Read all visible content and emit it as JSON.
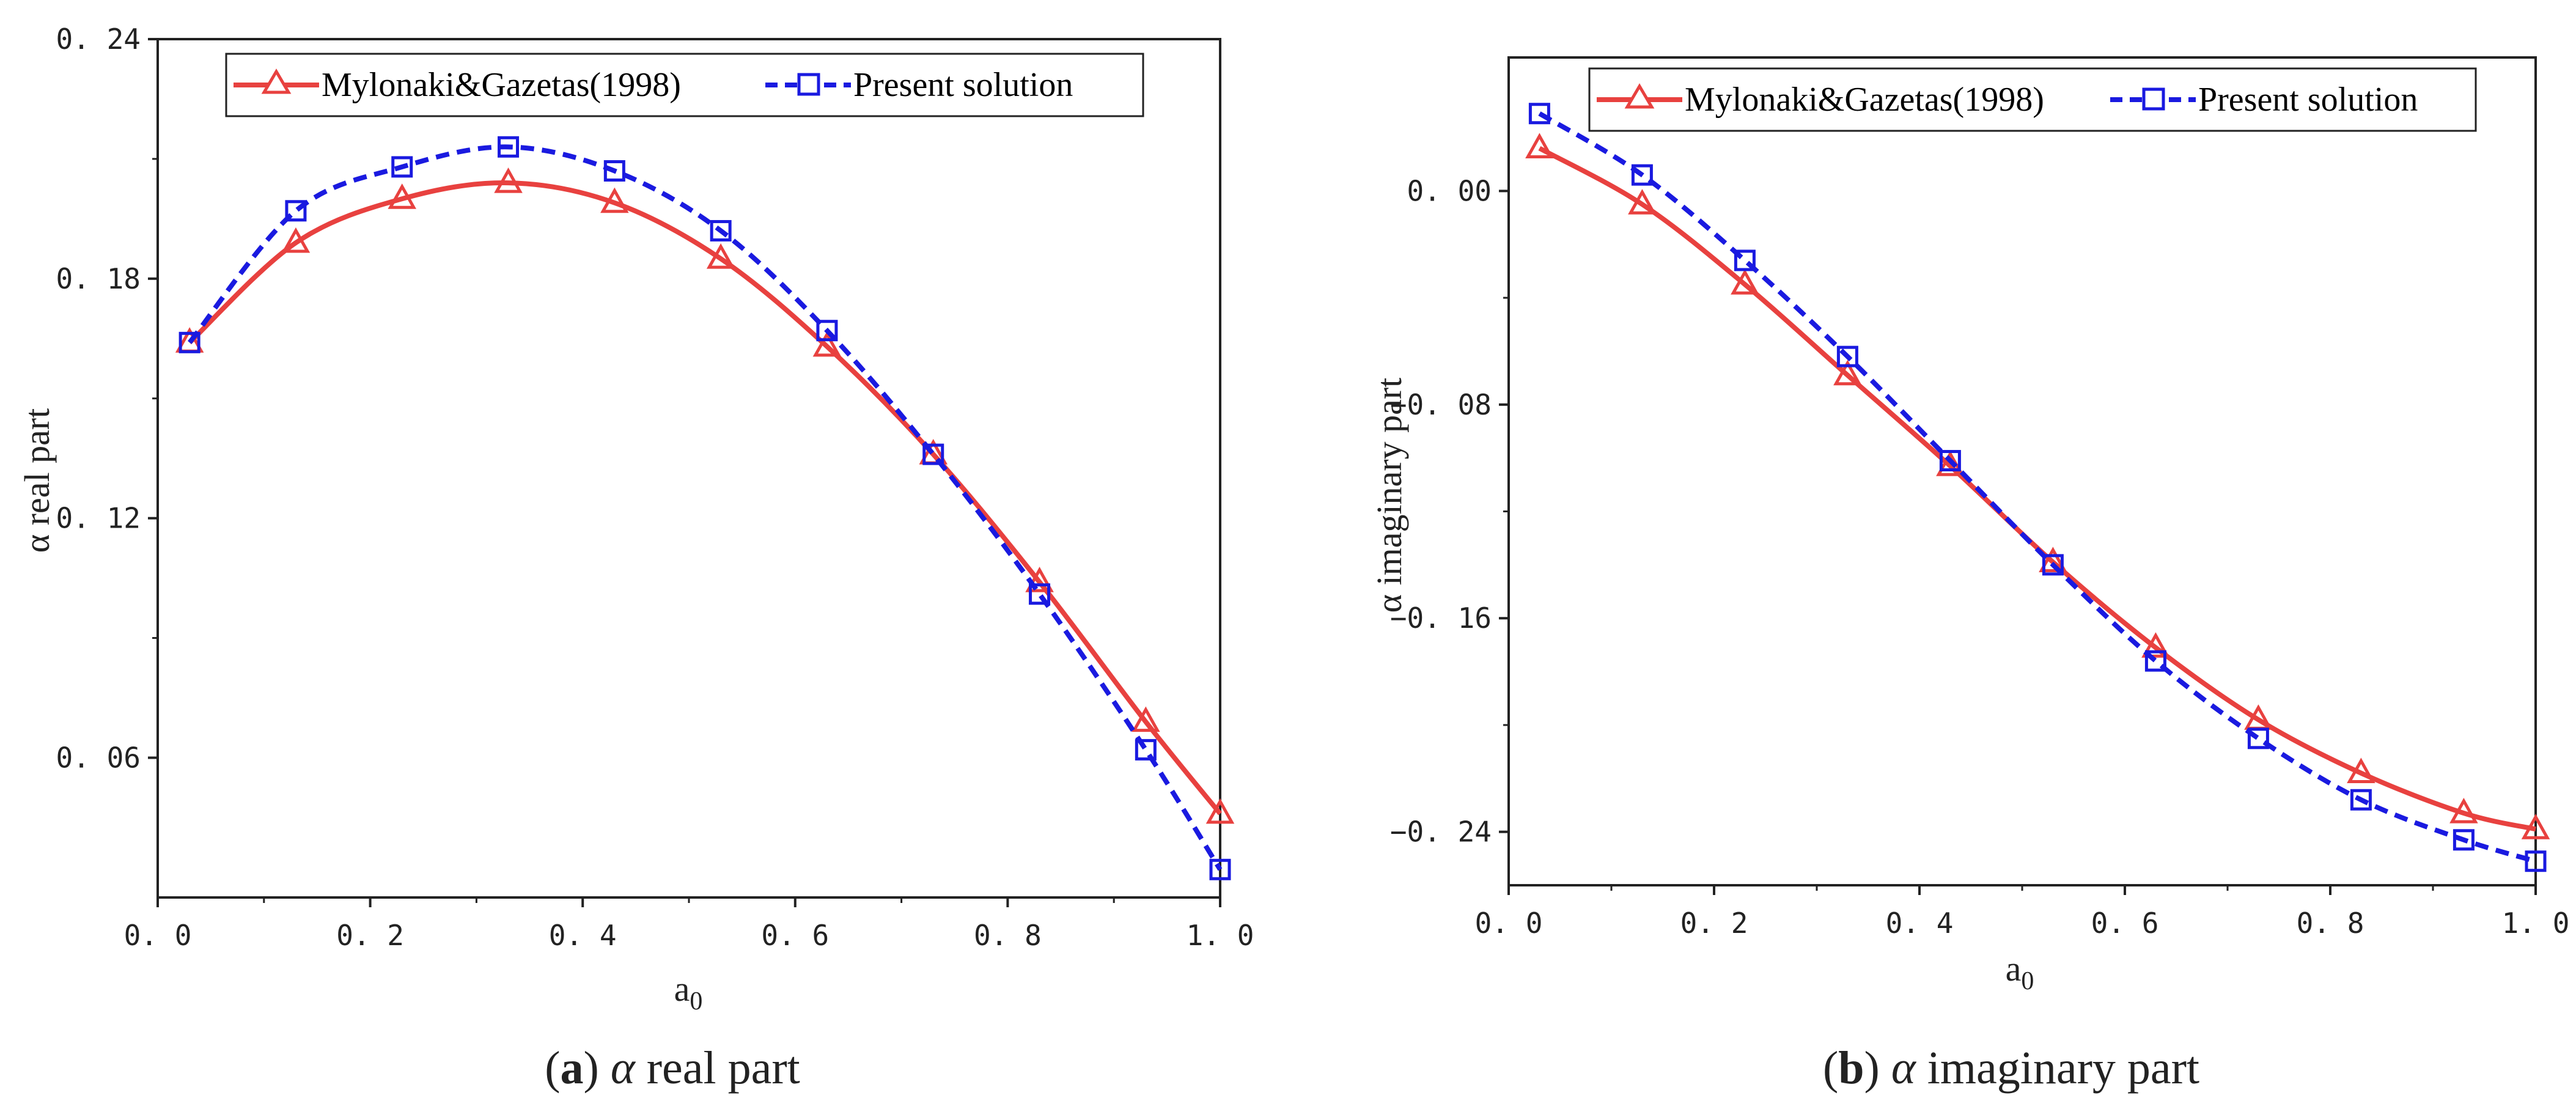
{
  "chart_data": [
    {
      "id": "a",
      "type": "line",
      "caption_letter": "a",
      "caption_symbol": "α",
      "caption_text": "real part",
      "xlabel_main": "a",
      "xlabel_sub": "0",
      "ylabel": "α real part",
      "xlim": [
        0.0,
        1.0
      ],
      "ylim": [
        0.025,
        0.24
      ],
      "xticks": [
        0.0,
        0.2,
        0.4,
        0.6,
        0.8,
        1.0
      ],
      "xtick_labels": [
        "0. 0",
        "0. 2",
        "0. 4",
        "0. 6",
        "0. 8",
        "1. 0"
      ],
      "yticks": [
        0.06,
        0.12,
        0.18,
        0.24
      ],
      "ytick_labels": [
        "0. 06",
        "0. 12",
        "0. 18",
        "0. 24"
      ],
      "legend_position": "top",
      "series": [
        {
          "name": "Mylonaki&Gazetas(1998)",
          "color": "#e8413f",
          "style": "solid",
          "marker": "triangle",
          "x": [
            0.03,
            0.13,
            0.23,
            0.33,
            0.43,
            0.53,
            0.63,
            0.73,
            0.83,
            0.93,
            1.0
          ],
          "values": [
            0.164,
            0.189,
            0.2,
            0.204,
            0.199,
            0.185,
            0.163,
            0.136,
            0.104,
            0.069,
            0.046
          ]
        },
        {
          "name": "Present solution",
          "color": "#1a1ae0",
          "style": "dashed",
          "marker": "square",
          "x": [
            0.03,
            0.13,
            0.23,
            0.33,
            0.43,
            0.53,
            0.63,
            0.73,
            0.83,
            0.93,
            1.0
          ],
          "values": [
            0.164,
            0.197,
            0.208,
            0.213,
            0.207,
            0.192,
            0.167,
            0.136,
            0.101,
            0.062,
            0.032
          ]
        }
      ]
    },
    {
      "id": "b",
      "type": "line",
      "caption_letter": "b",
      "caption_symbol": "α",
      "caption_text": "imaginary part",
      "xlabel_main": "a",
      "xlabel_sub": "0",
      "ylabel": "α imaginary part",
      "xlim": [
        0.0,
        1.0
      ],
      "ylim": [
        -0.26,
        0.05
      ],
      "xticks": [
        0.0,
        0.2,
        0.4,
        0.6,
        0.8,
        1.0
      ],
      "xtick_labels": [
        "0. 0",
        "0. 2",
        "0. 4",
        "0. 6",
        "0. 8",
        "1. 0"
      ],
      "yticks": [
        0.0,
        -0.08,
        -0.16,
        -0.24
      ],
      "ytick_labels": [
        "0. 00",
        "−0. 08",
        "−0. 16",
        "−0. 24"
      ],
      "legend_position": "top",
      "series": [
        {
          "name": "Mylonaki&Gazetas(1998)",
          "color": "#e8413f",
          "style": "solid",
          "marker": "triangle",
          "x": [
            0.03,
            0.13,
            0.23,
            0.33,
            0.43,
            0.53,
            0.63,
            0.73,
            0.83,
            0.93,
            1.0
          ],
          "values": [
            0.016,
            -0.005,
            -0.035,
            -0.069,
            -0.103,
            -0.139,
            -0.171,
            -0.198,
            -0.218,
            -0.233,
            -0.239
          ]
        },
        {
          "name": "Present solution",
          "color": "#1a1ae0",
          "style": "dashed",
          "marker": "square",
          "x": [
            0.03,
            0.13,
            0.23,
            0.33,
            0.43,
            0.53,
            0.63,
            0.73,
            0.83,
            0.93,
            1.0
          ],
          "values": [
            0.029,
            0.006,
            -0.026,
            -0.062,
            -0.101,
            -0.14,
            -0.176,
            -0.205,
            -0.228,
            -0.243,
            -0.251
          ]
        }
      ]
    }
  ]
}
